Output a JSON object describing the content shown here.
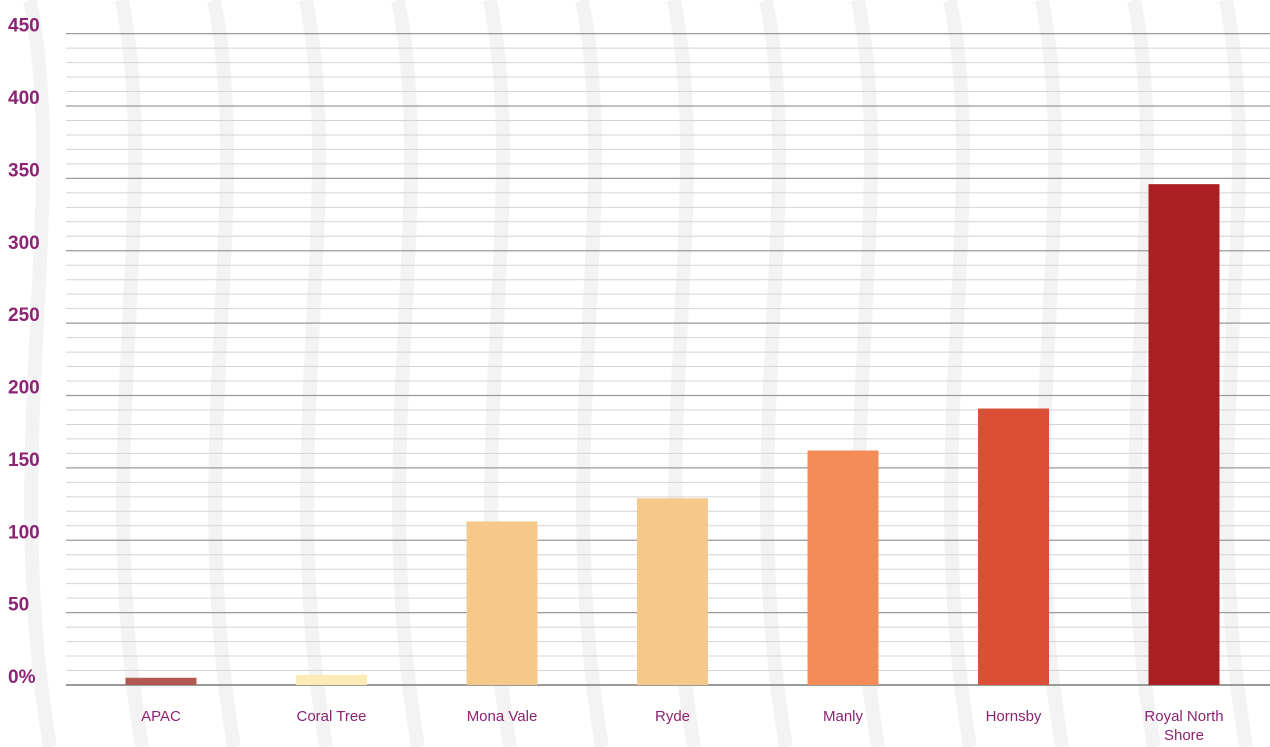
{
  "chart_data": {
    "type": "bar",
    "categories": [
      "APAC",
      "Coral Tree",
      "Mona Vale",
      "Ryde",
      "Manly",
      "Hornsby",
      "Royal North Shore"
    ],
    "category_lines": [
      [
        "APAC"
      ],
      [
        "Coral Tree"
      ],
      [
        "Mona Vale"
      ],
      [
        "Ryde"
      ],
      [
        "Manly"
      ],
      [
        "Hornsby"
      ],
      [
        "Royal North",
        "Shore"
      ]
    ],
    "values": [
      5,
      7,
      113,
      129,
      162,
      191,
      346
    ],
    "colors": [
      "#B05A52",
      "#FCEBB6",
      "#F6C98B",
      "#F6C98B",
      "#F48C5A",
      "#DC4F35",
      "#AB1F23"
    ],
    "y_ticks": [
      {
        "value": 0,
        "label": "0%"
      },
      {
        "value": 50,
        "label": "50"
      },
      {
        "value": 100,
        "label": "100"
      },
      {
        "value": 150,
        "label": "150"
      },
      {
        "value": 200,
        "label": "200"
      },
      {
        "value": 250,
        "label": "250"
      },
      {
        "value": 300,
        "label": "300"
      },
      {
        "value": 350,
        "label": "350"
      },
      {
        "value": 400,
        "label": "400"
      },
      {
        "value": 450,
        "label": "450"
      }
    ],
    "ylim": [
      0,
      400
    ],
    "minor_step": 10,
    "grid": true,
    "title": "",
    "xlabel": "",
    "ylabel": "",
    "label_color": "#8B2472",
    "major_grid_color": "#9A9A9A",
    "minor_grid_color": "#D4D4D4"
  }
}
